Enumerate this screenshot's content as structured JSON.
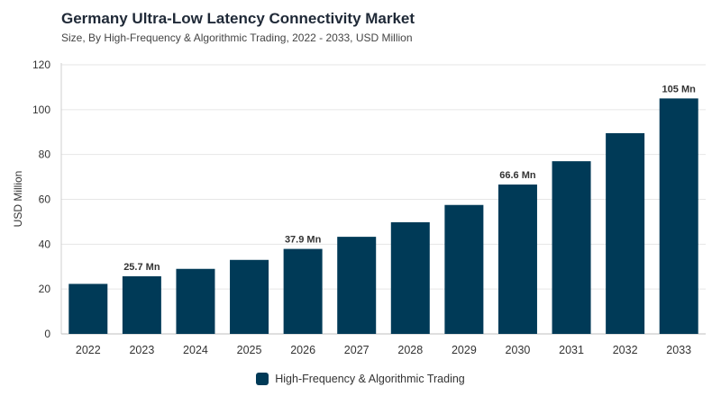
{
  "chart_data": {
    "type": "bar",
    "title": "Germany Ultra-Low Latency Connectivity Market",
    "subtitle": "Size, By High-Frequency & Algorithmic Trading, 2022 - 2033, USD Million",
    "xlabel": "",
    "ylabel": "USD Million",
    "ylim": [
      0,
      120
    ],
    "yticks": [
      0,
      20,
      40,
      60,
      80,
      100,
      120
    ],
    "grid": true,
    "legend_position": "bottom",
    "categories": [
      "2022",
      "2023",
      "2024",
      "2025",
      "2026",
      "2027",
      "2028",
      "2029",
      "2030",
      "2031",
      "2032",
      "2033"
    ],
    "series": [
      {
        "name": "High-Frequency & Algorithmic Trading",
        "color": "#003a57",
        "values": [
          22.3,
          25.7,
          29.0,
          33.0,
          37.9,
          43.3,
          49.8,
          57.5,
          66.6,
          77.0,
          89.5,
          105
        ]
      }
    ],
    "data_labels": [
      {
        "category": "2023",
        "text": "25.7 Mn"
      },
      {
        "category": "2026",
        "text": "37.9 Mn"
      },
      {
        "category": "2030",
        "text": "66.6 Mn"
      },
      {
        "category": "2033",
        "text": "105 Mn"
      }
    ]
  }
}
